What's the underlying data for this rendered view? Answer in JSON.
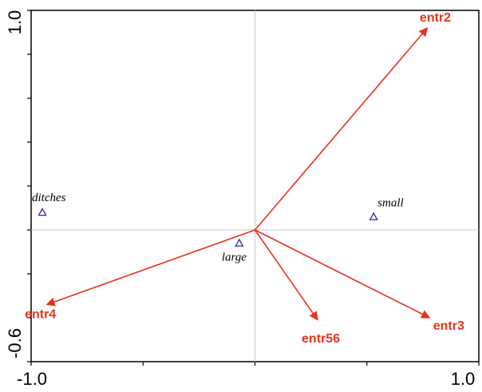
{
  "chart_data": {
    "type": "scatter",
    "title": "",
    "xlabel": "",
    "ylabel": "",
    "xlim": [
      -1.0,
      1.0
    ],
    "ylim": [
      -0.6,
      1.0
    ],
    "x_tick_labels": [
      "-1.0",
      "1.0"
    ],
    "y_tick_labels": [
      "1.0",
      "-0.6"
    ],
    "grid": false,
    "reference_lines": {
      "x": 0,
      "y": 0
    },
    "arrow_color": "#e8321e",
    "marker_color": "#2a2a8a",
    "series": [
      {
        "kind": "arrows",
        "points": [
          {
            "label": "entr2",
            "x": 0.77,
            "y": 0.92
          },
          {
            "label": "entr4",
            "x": -0.93,
            "y": -0.34
          },
          {
            "label": "entr56",
            "x": 0.28,
            "y": -0.41
          },
          {
            "label": "entr3",
            "x": 0.78,
            "y": -0.4
          }
        ]
      },
      {
        "kind": "points",
        "points": [
          {
            "label": "ditches",
            "x": -0.95,
            "y": 0.08
          },
          {
            "label": "small",
            "x": 0.53,
            "y": 0.06
          },
          {
            "label": "large",
            "x": -0.07,
            "y": -0.06
          }
        ]
      }
    ]
  }
}
